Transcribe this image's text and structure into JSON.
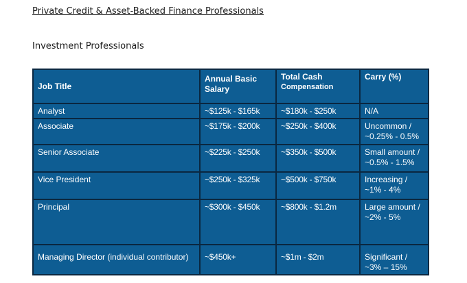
{
  "document": {
    "title": "Private Credit & Asset-Backed Finance Professionals",
    "section": "Investment Professionals"
  },
  "table": {
    "headers": {
      "job_title": "Job Title",
      "annual_basic_line1": "Annual Basic",
      "annual_basic_line2": "Salary",
      "total_cash_line1": "Total Cash",
      "total_cash_line2": "Compensation",
      "carry": "Carry (%)"
    },
    "rows": [
      {
        "job": "Analyst",
        "salary": "~$125k - $165k",
        "cash": "~$180k - $250k",
        "carry1": "N/A",
        "carry2": ""
      },
      {
        "job": "Associate",
        "salary": "~$175k - $200k",
        "cash": "~$250k - $400k",
        "carry1": "Uncommon /",
        "carry2": "~0.25% - 0.5%"
      },
      {
        "job": "Senior Associate",
        "salary": "~$225k - $250k",
        "cash": "~$350k - $500k",
        "carry1": "Small amount /",
        "carry2": "~0.5% - 1.5%"
      },
      {
        "job": "Vice President",
        "salary": "~$250k - $325k",
        "cash": "~$500k - $750k",
        "carry1": "Increasing /",
        "carry2": "~1% - 4%"
      },
      {
        "job": "Principal",
        "salary": "~$300k - $450k",
        "cash": "~$800k - $1.2m",
        "carry1": "Large amount /",
        "carry2": "~2% - 5%"
      },
      {
        "job": "Managing Director (individual contributor)",
        "salary": "~$450k+",
        "cash": "~$1m - $2m",
        "carry1": "Significant /",
        "carry2": "~3% – 15%"
      }
    ]
  },
  "colors": {
    "table_bg": "#0e5d93",
    "grid": "#0a2740",
    "text": "#ffffff"
  }
}
